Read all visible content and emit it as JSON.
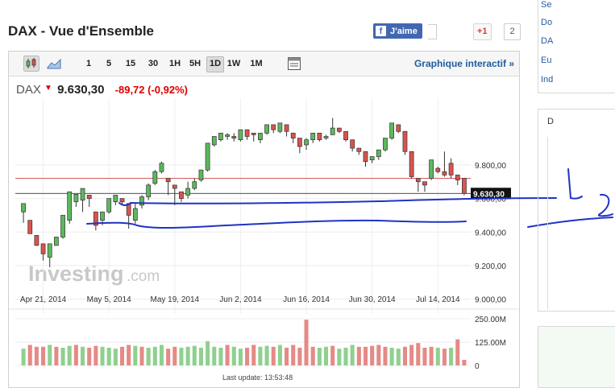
{
  "header": {
    "title": "DAX - Vue d'Ensemble",
    "facebook_label": "J'aime",
    "gplus_label": "+1",
    "gplus_count": "2"
  },
  "toolbar": {
    "intervals": [
      "1",
      "5",
      "15",
      "30",
      "1H",
      "5H",
      "1D",
      "1W",
      "1M"
    ],
    "active_interval": "1D",
    "interactive_link": "Graphique interactif »"
  },
  "quote": {
    "name": "DAX",
    "price": "9.630,30",
    "change": "-89,72 (-0,92%)"
  },
  "chart_data": {
    "type": "candlestick",
    "y_ticks": [
      "9.800,00",
      "9.600,00",
      "9.400,00",
      "9.200,00",
      "9.000,00"
    ],
    "x_ticks": [
      "Apr 21, 2014",
      "May 5, 2014",
      "May 19, 2014",
      "Jun 2, 2014",
      "Jun 16, 2014",
      "Jun 30, 2014",
      "Jul 14, 2014"
    ],
    "ylim": [
      8950,
      10150
    ],
    "last_price": 9630.3,
    "last_price_label": "9.630,30",
    "prev_close": 9720,
    "candles": [
      [
        9520,
        9570,
        9460,
        9455
      ],
      [
        9470,
        9390,
        9345,
        9395
      ],
      [
        9380,
        9320,
        9330,
        9320
      ],
      [
        9330,
        9270,
        9300,
        9230
      ],
      [
        9250,
        9330,
        9230,
        9190
      ],
      [
        9320,
        9370,
        9340,
        9330
      ],
      [
        9370,
        9500,
        9470,
        9360
      ],
      [
        9470,
        9640,
        9580,
        9450
      ],
      [
        9580,
        9625,
        9590,
        9550
      ],
      [
        9590,
        9660,
        9620,
        9520
      ],
      [
        9620,
        9600,
        9580,
        9550
      ],
      [
        9520,
        9440,
        9470,
        9410
      ],
      [
        9470,
        9520,
        9510,
        9440
      ],
      [
        9520,
        9600,
        9580,
        9510
      ],
      [
        9580,
        9620,
        9610,
        9560
      ],
      [
        9600,
        9580,
        9570,
        9560
      ],
      [
        9570,
        9500,
        9470,
        9420
      ],
      [
        9470,
        9540,
        9570,
        9450
      ],
      [
        9560,
        9610,
        9620,
        9540
      ],
      [
        9610,
        9680,
        9690,
        9590
      ],
      [
        9690,
        9760,
        9770,
        9680
      ],
      [
        9760,
        9810,
        9820,
        9750
      ],
      [
        9720,
        9700,
        9680,
        9620
      ],
      [
        9680,
        9660,
        9630,
        9560
      ],
      [
        9640,
        9600,
        9640,
        9580
      ],
      [
        9620,
        9660,
        9700,
        9600
      ],
      [
        9660,
        9700,
        9720,
        9650
      ],
      [
        9710,
        9770,
        9760,
        9700
      ],
      [
        9770,
        9930,
        9920,
        9760
      ],
      [
        9920,
        9970,
        9960,
        9910
      ],
      [
        9950,
        9990,
        9990,
        9940
      ],
      [
        9970,
        9980,
        9990,
        9950
      ],
      [
        9970,
        9960,
        9990,
        9940
      ],
      [
        9950,
        10010,
        10000,
        9940
      ],
      [
        10010,
        9970,
        9990,
        9950
      ],
      [
        9990,
        9980,
        9970,
        9940
      ],
      [
        9950,
        9990,
        9990,
        9930
      ],
      [
        9990,
        10040,
        10040,
        9980
      ],
      [
        10040,
        10010,
        10040,
        9990
      ],
      [
        10000,
        10050,
        10050,
        9990
      ],
      [
        10040,
        10000,
        10040,
        9970
      ],
      [
        9990,
        9960,
        9990,
        9930
      ],
      [
        9960,
        9910,
        9950,
        9870
      ],
      [
        9920,
        9950,
        9960,
        9890
      ],
      [
        9950,
        9990,
        9980,
        9930
      ],
      [
        9990,
        9950,
        9990,
        9940
      ],
      [
        9960,
        9970,
        9980,
        9950
      ],
      [
        9980,
        10020,
        10080,
        9980
      ],
      [
        10020,
        10000,
        10020,
        9990
      ],
      [
        10000,
        9950,
        9990,
        9940
      ],
      [
        9950,
        9900,
        9940,
        9880
      ],
      [
        9900,
        9880,
        9890,
        9860
      ],
      [
        9880,
        9820,
        9840,
        9790
      ],
      [
        9830,
        9850,
        9850,
        9810
      ],
      [
        9850,
        9890,
        9880,
        9830
      ],
      [
        9890,
        9960,
        9950,
        9880
      ],
      [
        9960,
        10050,
        10040,
        9950
      ],
      [
        10040,
        10000,
        10020,
        9990
      ],
      [
        10000,
        9880,
        9900,
        9860
      ],
      [
        9880,
        9730,
        9800,
        9720
      ],
      [
        9720,
        9700,
        9720,
        9640
      ],
      [
        9700,
        9680,
        9700,
        9640
      ],
      [
        9720,
        9830,
        9780,
        9710
      ],
      [
        9780,
        9760,
        9790,
        9750
      ],
      [
        9760,
        9740,
        9880,
        9730
      ],
      [
        9810,
        9740,
        9840,
        9720
      ],
      [
        9740,
        9710,
        9720,
        9680
      ],
      [
        9720,
        9630,
        9720,
        9620
      ]
    ],
    "volume_ticks": [
      "250.00M",
      "125.00M",
      "0"
    ],
    "volume_max": 250,
    "volumes": [
      [
        90,
        "up"
      ],
      [
        110,
        "down"
      ],
      [
        100,
        "down"
      ],
      [
        100,
        "down"
      ],
      [
        110,
        "up"
      ],
      [
        100,
        "down"
      ],
      [
        95,
        "up"
      ],
      [
        105,
        "up"
      ],
      [
        110,
        "down"
      ],
      [
        100,
        "up"
      ],
      [
        95,
        "down"
      ],
      [
        105,
        "down"
      ],
      [
        100,
        "up"
      ],
      [
        95,
        "up"
      ],
      [
        90,
        "up"
      ],
      [
        100,
        "down"
      ],
      [
        110,
        "down"
      ],
      [
        105,
        "up"
      ],
      [
        100,
        "down"
      ],
      [
        95,
        "up"
      ],
      [
        100,
        "up"
      ],
      [
        110,
        "up"
      ],
      [
        90,
        "down"
      ],
      [
        100,
        "down"
      ],
      [
        95,
        "up"
      ],
      [
        100,
        "up"
      ],
      [
        105,
        "up"
      ],
      [
        95,
        "up"
      ],
      [
        130,
        "up"
      ],
      [
        100,
        "up"
      ],
      [
        95,
        "up"
      ],
      [
        110,
        "down"
      ],
      [
        100,
        "up"
      ],
      [
        90,
        "up"
      ],
      [
        95,
        "down"
      ],
      [
        110,
        "down"
      ],
      [
        100,
        "up"
      ],
      [
        105,
        "up"
      ],
      [
        100,
        "down"
      ],
      [
        110,
        "up"
      ],
      [
        95,
        "down"
      ],
      [
        110,
        "down"
      ],
      [
        95,
        "down"
      ],
      [
        245,
        "down"
      ],
      [
        100,
        "down"
      ],
      [
        95,
        "up"
      ],
      [
        100,
        "up"
      ],
      [
        105,
        "down"
      ],
      [
        90,
        "up"
      ],
      [
        95,
        "up"
      ],
      [
        110,
        "up"
      ],
      [
        100,
        "down"
      ],
      [
        100,
        "down"
      ],
      [
        105,
        "down"
      ],
      [
        110,
        "down"
      ],
      [
        100,
        "down"
      ],
      [
        95,
        "up"
      ],
      [
        90,
        "up"
      ],
      [
        100,
        "down"
      ],
      [
        110,
        "down"
      ],
      [
        120,
        "down"
      ],
      [
        95,
        "down"
      ],
      [
        100,
        "down"
      ],
      [
        95,
        "up"
      ],
      [
        90,
        "down"
      ],
      [
        95,
        "up"
      ],
      [
        140,
        "down"
      ],
      [
        30,
        "down"
      ]
    ],
    "annotations": [
      "1",
      "2"
    ]
  },
  "footer": {
    "last_update": "Last update: 13:53:48"
  },
  "watermark": {
    "brand": "Investing",
    "suffix": ".com"
  },
  "sidebar": {
    "items": [
      "Se",
      "Do",
      "DA",
      "Eu",
      "Ind"
    ],
    "box_label": "D"
  },
  "colors": {
    "up": "#5cb85c",
    "down": "#d9534f",
    "annotation": "#1f33c4"
  }
}
